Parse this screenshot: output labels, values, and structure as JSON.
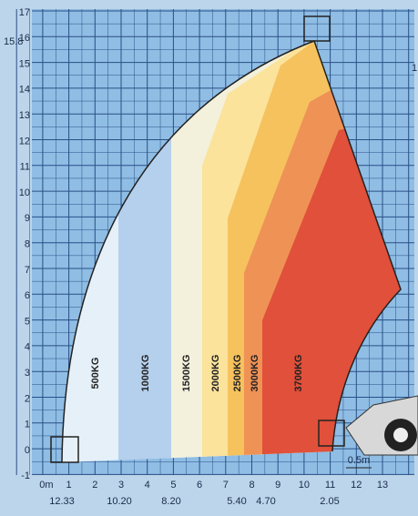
{
  "y_axis": {
    "ticks": [
      17,
      16,
      15,
      14,
      13,
      12,
      11,
      10,
      9,
      8,
      7,
      6,
      5,
      4,
      3,
      2,
      1,
      0,
      -1
    ],
    "marker": "15.8"
  },
  "x_axis": {
    "ticks": [
      "13",
      "12",
      "11",
      "10",
      "9",
      "8",
      "7",
      "6",
      "5",
      "4",
      "3",
      "2",
      "1",
      "0m"
    ],
    "distances": [
      "12.33",
      "10.20",
      "8.20",
      "5.40",
      "4.70",
      "2.05"
    ]
  },
  "zones": [
    {
      "label": "500KG"
    },
    {
      "label": "1000KG"
    },
    {
      "label": "1500KG"
    },
    {
      "label": "2000KG"
    },
    {
      "label": "2500KG"
    },
    {
      "label": "3000KG"
    },
    {
      "label": "3700KG"
    }
  ],
  "scale_note": "0.5m",
  "edge_text": "1"
}
